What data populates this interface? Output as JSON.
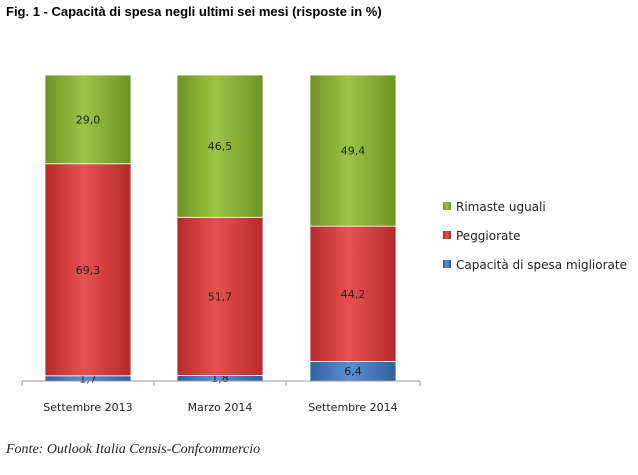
{
  "title": "Fig. 1 - Capacità di spesa negli ultimi sei mesi (risposte in %)",
  "source": "Fonte: Outlook Italia Censis-Confcommercio",
  "chart_data": {
    "type": "bar",
    "stacked": true,
    "title": "Fig. 1 - Capacità di spesa negli ultimi sei mesi (risposte in %)",
    "categories": [
      "Settembre 2013",
      "Marzo 2014",
      "Settembre 2014"
    ],
    "ylim": [
      0,
      100
    ],
    "grid": false,
    "legend_position": "right",
    "series": [
      {
        "name": "Capacità di spesa migliorate",
        "values": [
          1.7,
          1.8,
          6.4
        ],
        "labels": [
          "1,7",
          "1,8",
          "6,4"
        ],
        "color": "#4a7ec9"
      },
      {
        "name": "Peggiorate",
        "values": [
          69.3,
          51.7,
          44.2
        ],
        "labels": [
          "69,3",
          "51,7",
          "44,2"
        ],
        "color": "#d94040"
      },
      {
        "name": "Rimaste uguali",
        "values": [
          29.0,
          46.5,
          49.4
        ],
        "labels": [
          "29,0",
          "46,5",
          "49,4"
        ],
        "color": "#8cb33d"
      }
    ],
    "legend_order": [
      "Rimaste uguali",
      "Peggiorate",
      "Capacità di spesa migliorate"
    ]
  }
}
